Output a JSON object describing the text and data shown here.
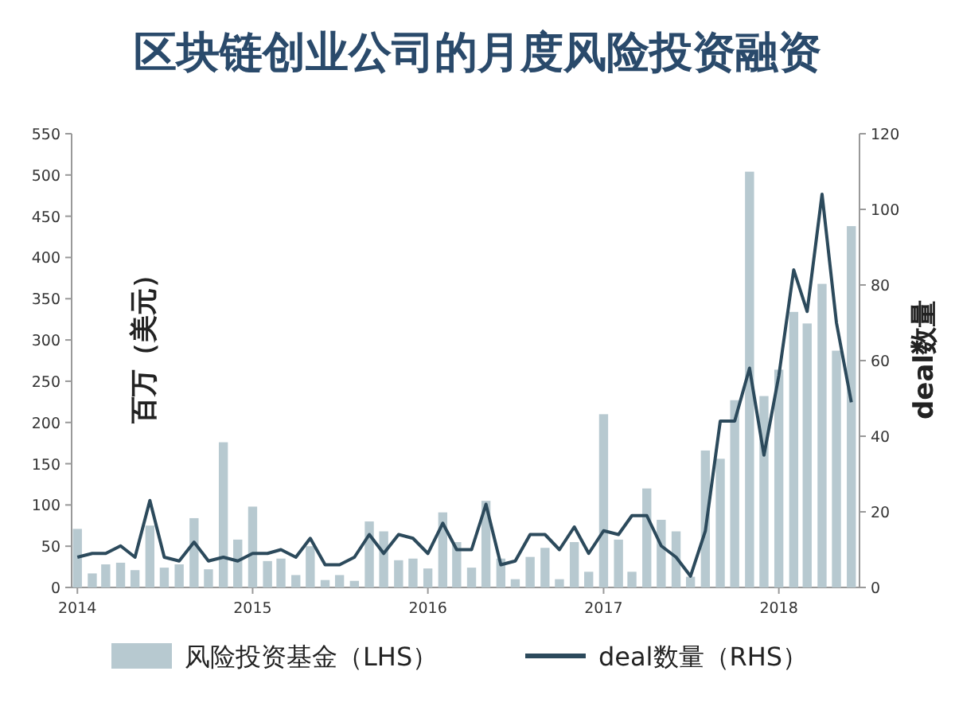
{
  "chart_data": {
    "type": "bar",
    "title": "区块链创业公司的月度风险投资融资",
    "ylabel": "百万（美元）",
    "y2label": "deal数量",
    "x": [
      "2014-01",
      "2014-02",
      "2014-03",
      "2014-04",
      "2014-05",
      "2014-06",
      "2014-07",
      "2014-08",
      "2014-09",
      "2014-10",
      "2014-11",
      "2014-12",
      "2015-01",
      "2015-02",
      "2015-03",
      "2015-04",
      "2015-05",
      "2015-06",
      "2015-07",
      "2015-08",
      "2015-09",
      "2015-10",
      "2015-11",
      "2015-12",
      "2016-01",
      "2016-02",
      "2016-03",
      "2016-04",
      "2016-05",
      "2016-06",
      "2016-07",
      "2016-08",
      "2016-09",
      "2016-10",
      "2016-11",
      "2016-12",
      "2017-01",
      "2017-02",
      "2017-03",
      "2017-04",
      "2017-05",
      "2017-06",
      "2017-07",
      "2017-08",
      "2017-09",
      "2017-10",
      "2017-11",
      "2017-12",
      "2018-01",
      "2018-02",
      "2018-03",
      "2018-04",
      "2018-05",
      "2018-06"
    ],
    "series": [
      {
        "name": "风险投资基金（LHS）",
        "color": "#b7c9d0",
        "values": [
          71,
          17,
          28,
          30,
          21,
          75,
          24,
          28,
          84,
          22,
          176,
          58,
          98,
          32,
          35,
          15,
          50,
          9,
          15,
          8,
          80,
          68,
          33,
          35,
          23,
          91,
          55,
          24,
          105,
          35,
          10,
          37,
          48,
          10,
          55,
          19,
          210,
          58,
          19,
          120,
          82,
          68,
          13,
          166,
          156,
          227,
          504,
          232,
          264,
          334,
          320,
          368,
          287,
          438
        ]
      },
      {
        "name": "deal数量（RHS）",
        "type": "line",
        "axis": "y2",
        "color": "#2c4a5c",
        "values": [
          8,
          9,
          9,
          11,
          8,
          23,
          8,
          7,
          12,
          7,
          8,
          7,
          9,
          9,
          10,
          8,
          13,
          6,
          6,
          8,
          14,
          9,
          14,
          13,
          9,
          17,
          10,
          10,
          22,
          6,
          7,
          14,
          14,
          10,
          16,
          9,
          15,
          14,
          19,
          19,
          11,
          8,
          3,
          15,
          44,
          44,
          58,
          35,
          56,
          84,
          73,
          104,
          70,
          49
        ]
      }
    ],
    "xlim": [
      "2013-12-20",
      "2018-06-18"
    ],
    "xticks": [
      "2014",
      "2015",
      "2016",
      "2017",
      "2018"
    ],
    "ylim": [
      0,
      550
    ],
    "yticks": [
      0,
      50,
      100,
      150,
      200,
      250,
      300,
      350,
      400,
      450,
      500,
      550
    ],
    "y2lim": [
      0,
      120
    ],
    "y2ticks": [
      0,
      20,
      40,
      60,
      80,
      100,
      120
    ],
    "legend": "bottom",
    "grid": false
  }
}
